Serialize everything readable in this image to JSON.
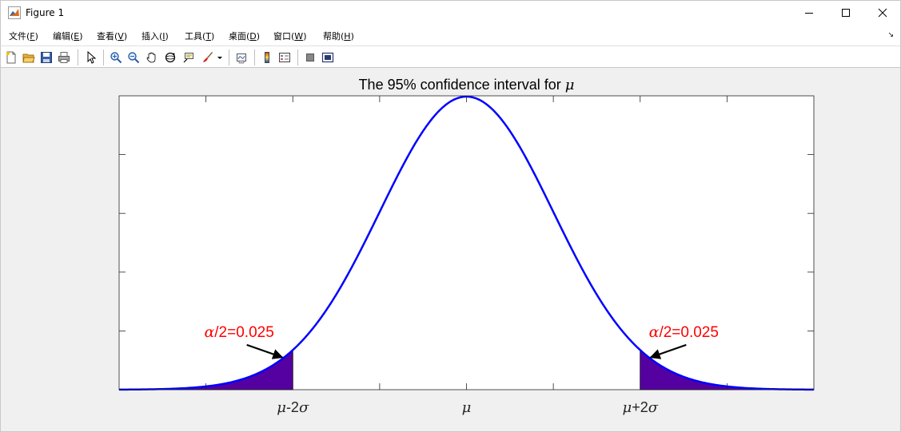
{
  "window": {
    "title": "Figure 1"
  },
  "menu": {
    "items": [
      {
        "label": "文件(",
        "mnemonic": "F",
        "suffix": ")"
      },
      {
        "label": "编辑(",
        "mnemonic": "E",
        "suffix": ")"
      },
      {
        "label": "查看(",
        "mnemonic": "V",
        "suffix": ")"
      },
      {
        "label": "插入(",
        "mnemonic": "I",
        "suffix": ")"
      },
      {
        "label": "工具(",
        "mnemonic": "T",
        "suffix": ")"
      },
      {
        "label": "桌面(",
        "mnemonic": "D",
        "suffix": ")"
      },
      {
        "label": "窗口(",
        "mnemonic": "W",
        "suffix": ")"
      },
      {
        "label": "帮助(",
        "mnemonic": "H",
        "suffix": ")"
      }
    ]
  },
  "toolbar": {
    "icons": [
      "new-figure-icon",
      "open-file-icon",
      "save-icon",
      "print-icon",
      "pointer-icon",
      "zoom-in-icon",
      "zoom-out-icon",
      "pan-icon",
      "rotate-3d-icon",
      "data-cursor-icon",
      "brush-icon",
      "dropdown-arrow-icon",
      "link-plot-icon",
      "colorbar-icon",
      "legend-icon",
      "hide-plot-tools-icon",
      "show-plot-tools-icon"
    ]
  },
  "chart_data": {
    "type": "area",
    "title_prefix": "The 95% confidence interval for ",
    "title_symbol": "μ",
    "xlim": [
      -4,
      4
    ],
    "ylim": [
      0,
      0.4
    ],
    "grid": false,
    "curve": {
      "name": "normal pdf",
      "color": "#0000ff",
      "mean": 0,
      "sd": 1
    },
    "shaded_regions": [
      {
        "from": -4,
        "to": -2,
        "color": "#5500a0"
      },
      {
        "from": 2,
        "to": 4,
        "color": "#5500a0"
      }
    ],
    "xticks": [
      -2,
      0,
      2
    ],
    "xticklabels": [
      {
        "value": -2,
        "sym": "μ",
        "text": "-2",
        "sym2": "σ"
      },
      {
        "value": 0,
        "sym": "μ",
        "text": "",
        "sym2": ""
      },
      {
        "value": 2,
        "sym": "μ",
        "text": "+2",
        "sym2": "σ"
      }
    ],
    "minor_xticks": [
      -3,
      -1,
      1,
      3
    ],
    "yticks": [
      0.08,
      0.16,
      0.24,
      0.32
    ],
    "annotations": [
      {
        "sym": "α",
        "text": "/2=0.025",
        "color": "#ff0000",
        "x": -3.02,
        "y": 0.072,
        "arrow_from": [
          -2.53,
          0.061
        ],
        "arrow_to": [
          -2.12,
          0.044
        ]
      },
      {
        "sym": "α",
        "text": "/2=0.025",
        "color": "#ff0000",
        "x": 2.1,
        "y": 0.072,
        "arrow_from": [
          2.53,
          0.061
        ],
        "arrow_to": [
          2.12,
          0.044
        ]
      }
    ]
  }
}
